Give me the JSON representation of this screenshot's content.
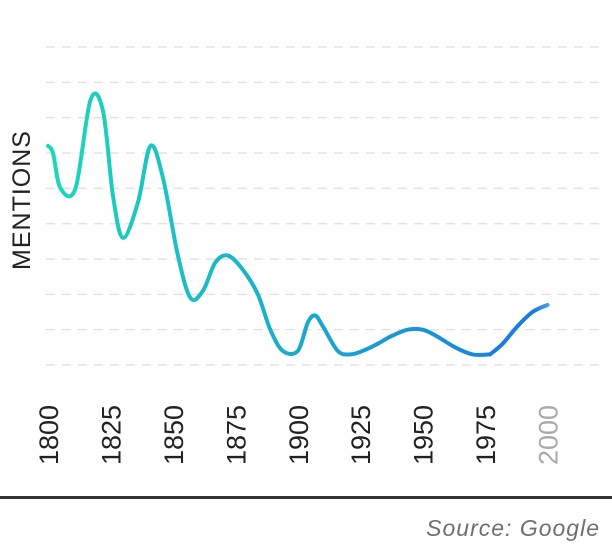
{
  "chart_data": {
    "type": "line",
    "title": "",
    "xlabel": "",
    "ylabel": "MENTIONS",
    "x_ticks": [
      {
        "label": "1800",
        "value": 1800,
        "muted": false
      },
      {
        "label": "1825",
        "value": 1825,
        "muted": false
      },
      {
        "label": "1850",
        "value": 1850,
        "muted": false
      },
      {
        "label": "1875",
        "value": 1875,
        "muted": false
      },
      {
        "label": "1900",
        "value": 1900,
        "muted": false
      },
      {
        "label": "1925",
        "value": 1925,
        "muted": false
      },
      {
        "label": "1950",
        "value": 1950,
        "muted": false
      },
      {
        "label": "1975",
        "value": 1975,
        "muted": false
      },
      {
        "label": "2000",
        "value": 2000,
        "muted": true
      }
    ],
    "xlim": [
      1800,
      2015
    ],
    "ylim": [
      0,
      9
    ],
    "y_axis_labels": "none",
    "grid": "horizontal dashed",
    "series": [
      {
        "name": "",
        "x": [
          1800,
          1802,
          1805,
          1811,
          1817,
          1822,
          1826,
          1830,
          1836,
          1841,
          1846,
          1852,
          1857,
          1862,
          1867,
          1872,
          1878,
          1884,
          1889,
          1894,
          1900,
          1904,
          1907,
          1910,
          1916,
          1921,
          1926,
          1932,
          1937,
          1944,
          1950,
          1956,
          1963,
          1970,
          1977,
          1982,
          1988,
          1994,
          2000
        ],
        "y": [
          6.2,
          6.0,
          5.0,
          5.0,
          7.5,
          7.2,
          4.8,
          3.6,
          4.6,
          6.2,
          5.3,
          3.1,
          1.9,
          2.1,
          2.9,
          3.1,
          2.7,
          2.0,
          1.0,
          0.4,
          0.4,
          1.2,
          1.4,
          1.1,
          0.4,
          0.3,
          0.4,
          0.6,
          0.8,
          1.0,
          1.0,
          0.8,
          0.5,
          0.3,
          0.3,
          0.6,
          1.1,
          1.5,
          1.7
        ]
      }
    ],
    "projection_from_x": 1980,
    "colors": {
      "line_start": "#1ed8b8",
      "line_end": "#1a7de0",
      "projection": "#a8c8f5",
      "grid": "#e2e2e2",
      "tick_text": "#222222",
      "tick_text_muted": "#aaaaaa",
      "ylabel_text": "#222222"
    }
  },
  "source": {
    "text": "Source: Google"
  }
}
